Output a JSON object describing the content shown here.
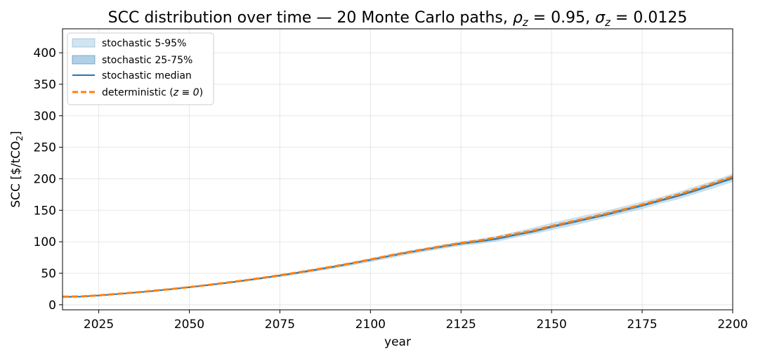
{
  "chart_data": {
    "type": "line",
    "title": "SCC distribution over time — 20 Monte Carlo paths, ρ_z = 0.95, σ_z = 0.0125",
    "title_parts": {
      "prefix": "SCC distribution over time — 20 Monte Carlo paths, ",
      "rho_symbol": "ρ",
      "rho_sub": "z",
      "rho_value": " = 0.95, ",
      "sigma_symbol": "σ",
      "sigma_sub": "z",
      "sigma_value": " = 0.0125"
    },
    "xlabel": "year",
    "ylabel": "SCC [$/tCO₂]",
    "ylabel_parts": {
      "prefix": "SCC [$/tCO",
      "sub": "2",
      "suffix": "]"
    },
    "xlim": [
      2015,
      2200
    ],
    "ylim": [
      -8,
      438
    ],
    "xticks": [
      2025,
      2050,
      2075,
      2100,
      2125,
      2150,
      2175,
      2200
    ],
    "yticks": [
      0,
      50,
      100,
      150,
      200,
      250,
      300,
      350,
      400
    ],
    "grid": true,
    "legend_position": "top-left",
    "x": [
      2015,
      2020,
      2025,
      2030,
      2035,
      2040,
      2045,
      2050,
      2055,
      2060,
      2065,
      2070,
      2075,
      2080,
      2085,
      2090,
      2095,
      2100,
      2105,
      2110,
      2115,
      2120,
      2125,
      2130,
      2135,
      2140,
      2145,
      2150,
      2155,
      2160,
      2165,
      2170,
      2175,
      2180,
      2185,
      2190,
      2195,
      2200
    ],
    "series": [
      {
        "name": "stochastic 5-95%",
        "kind": "band",
        "color": "#1f77b4",
        "opacity": 0.2,
        "lower": [
          11.5,
          12.5,
          14.3,
          16.4,
          18.7,
          21.3,
          24.0,
          26.9,
          30.0,
          33.3,
          36.9,
          40.7,
          44.7,
          48.9,
          53.4,
          58.1,
          63.1,
          68.4,
          74.0,
          79.6,
          84.5,
          89.5,
          94.0,
          97.0,
          101.0,
          107.0,
          112.5,
          119.0,
          125.0,
          131.5,
          139.0,
          145.5,
          152.5,
          161.0,
          168.0,
          177.0,
          186.0,
          195.5
        ],
        "upper": [
          13.5,
          13.7,
          15.5,
          17.6,
          20.0,
          22.7,
          25.6,
          28.7,
          32.0,
          35.6,
          39.4,
          43.5,
          47.8,
          52.4,
          57.2,
          62.3,
          67.7,
          73.4,
          79.5,
          85.0,
          90.0,
          95.0,
          100.0,
          104.0,
          109.0,
          115.5,
          122.0,
          129.5,
          136.0,
          142.5,
          148.5,
          156.0,
          163.0,
          170.5,
          178.5,
          188.0,
          197.0,
          207.5
        ]
      },
      {
        "name": "stochastic 25-75%",
        "kind": "band",
        "color": "#1f77b4",
        "opacity": 0.35,
        "lower": [
          12.0,
          12.8,
          14.6,
          16.7,
          19.0,
          21.6,
          24.4,
          27.4,
          30.6,
          34.0,
          37.7,
          41.6,
          45.8,
          50.2,
          54.9,
          59.8,
          65.0,
          70.5,
          76.2,
          81.7,
          86.7,
          91.5,
          96.0,
          99.5,
          103.5,
          109.5,
          115.0,
          122.0,
          128.5,
          135.0,
          141.5,
          148.5,
          156.0,
          164.0,
          171.5,
          180.0,
          190.0,
          199.0
        ],
        "upper": [
          13.0,
          13.3,
          15.1,
          17.2,
          19.6,
          22.3,
          25.2,
          28.3,
          31.6,
          35.1,
          38.9,
          42.9,
          47.1,
          51.6,
          56.3,
          61.2,
          66.4,
          72.0,
          77.9,
          83.4,
          88.4,
          93.5,
          98.5,
          102.0,
          106.5,
          112.5,
          118.5,
          125.5,
          132.0,
          138.5,
          145.0,
          152.5,
          159.5,
          167.0,
          175.0,
          184.0,
          193.5,
          203.5
        ]
      },
      {
        "name": "stochastic median",
        "kind": "line",
        "color": "#1f77b4",
        "dash": "solid",
        "values": [
          12.5,
          13.0,
          14.8,
          17.0,
          19.3,
          21.9,
          24.8,
          27.8,
          31.1,
          34.5,
          38.3,
          42.2,
          46.4,
          50.9,
          55.6,
          60.5,
          65.7,
          71.2,
          77.0,
          82.5,
          87.5,
          92.5,
          97.0,
          100.5,
          105.0,
          111.0,
          116.5,
          124.0,
          130.0,
          136.5,
          143.0,
          150.5,
          157.5,
          165.5,
          173.0,
          182.0,
          191.5,
          201.0
        ]
      },
      {
        "name": "deterministic (z ≡ 0)",
        "kind": "line",
        "color": "#ff7f0e",
        "dash": "dashed",
        "values": [
          12.8,
          13.2,
          15.0,
          17.2,
          19.5,
          22.1,
          25.0,
          28.0,
          31.4,
          34.9,
          38.6,
          42.6,
          46.9,
          51.4,
          56.1,
          61.1,
          66.3,
          71.9,
          77.7,
          83.2,
          88.2,
          93.3,
          98.0,
          102.0,
          107.0,
          112.5,
          118.0,
          125.0,
          131.5,
          138.0,
          144.5,
          151.5,
          159.0,
          167.0,
          175.0,
          184.0,
          193.5,
          203.5
        ]
      }
    ],
    "legend": [
      {
        "label": "stochastic 5-95%"
      },
      {
        "label": "stochastic 25-75%"
      },
      {
        "label": "stochastic median"
      },
      {
        "label_prefix": "deterministic (",
        "label_math": "z ≡ 0",
        "label_suffix": ")"
      }
    ]
  }
}
